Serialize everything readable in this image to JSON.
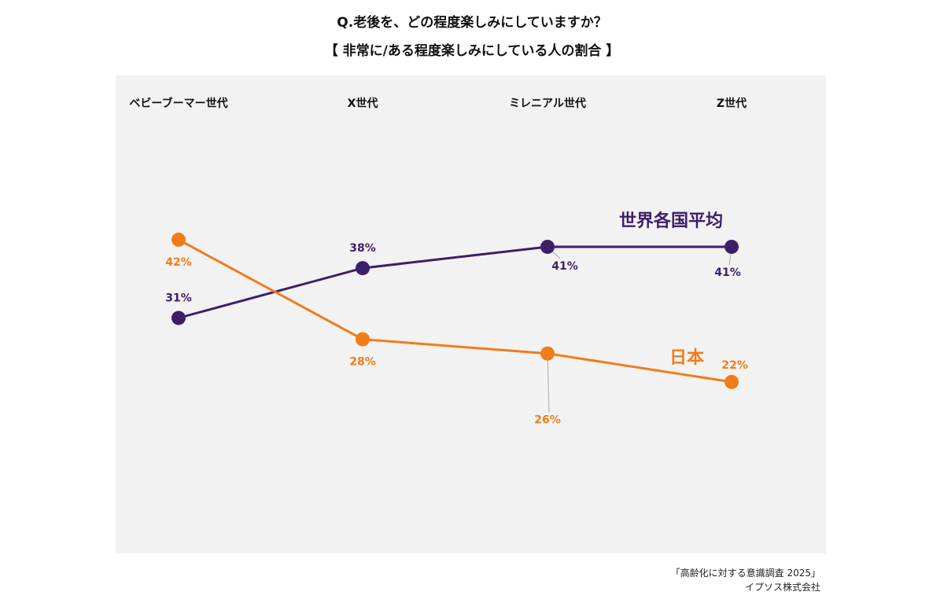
{
  "title_line1": "Q.老後を、どの程度楽しみにしていますか？",
  "title_line2": "【 非常に/ある程度楽しみにしている人の割合 】",
  "source_line1": "「高齢化に対する意識調査 2025」",
  "source_line2": "イプソス株式会社",
  "colors": {
    "world": "#3d1f68",
    "japan": "#f07d19",
    "panel": "#f2f2f2",
    "leader": "#aaaaaa"
  },
  "chart_data": {
    "type": "line",
    "categories": [
      "ベビーブーマー世代",
      "X世代",
      "ミレニアル世代",
      "Z世代"
    ],
    "series": [
      {
        "name": "世界各国平均",
        "values": [
          31,
          38,
          41,
          41
        ],
        "labels": [
          "31%",
          "38%",
          "41%",
          "41%"
        ],
        "color": "#3d1f68"
      },
      {
        "name": "日本",
        "values": [
          42,
          28,
          26,
          22
        ],
        "labels": [
          "42%",
          "28%",
          "26%",
          "22%"
        ],
        "color": "#f07d19"
      }
    ],
    "ylim": [
      0,
      60
    ],
    "grid": false,
    "legend": "direct labels"
  }
}
